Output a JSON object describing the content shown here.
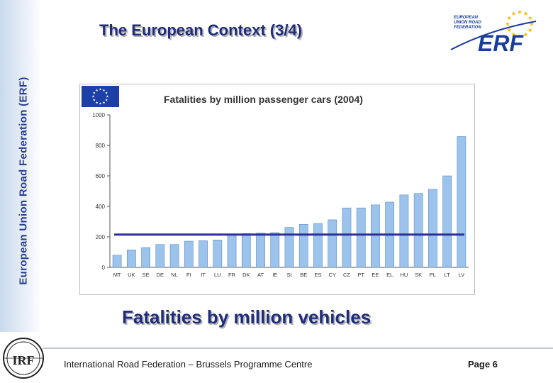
{
  "sidebar": {
    "text": "European Union Road Federation (ERF)"
  },
  "slide": {
    "title": "The European Context (3/4)"
  },
  "logo": {
    "line1": "EUROPEAN",
    "line2": "UNION ROAD",
    "line3": "FEDERATION",
    "mark": "ERF",
    "colors": {
      "brand": "#1a3d9c",
      "star": "#f2c200"
    }
  },
  "chart_data": {
    "type": "bar",
    "title": "Fatalities by million passenger cars (2004)",
    "categories": [
      "MT",
      "UK",
      "SE",
      "DE",
      "NL",
      "FI",
      "IT",
      "LU",
      "FR",
      "DK",
      "AT",
      "IE",
      "SI",
      "BE",
      "ES",
      "CY",
      "CZ",
      "PT",
      "EE",
      "EL",
      "HU",
      "SK",
      "PL",
      "LT",
      "LV"
    ],
    "values": [
      80,
      115,
      130,
      150,
      150,
      172,
      175,
      180,
      210,
      222,
      225,
      228,
      262,
      282,
      288,
      312,
      390,
      390,
      410,
      428,
      475,
      485,
      512,
      600,
      858
    ],
    "average_line": 215,
    "ylim": [
      0,
      1000
    ],
    "yticks": [
      0,
      200,
      400,
      600,
      800,
      1000
    ],
    "grid": false,
    "colors": {
      "bar": "#9cc3ec",
      "bar_edge": "#5d8cc4",
      "average": "#2e2f9a",
      "eu_flag": "#1d3fa8"
    }
  },
  "caption": "Fatalities by million vehicles",
  "footer": {
    "text": "International Road Federation – Brussels Programme Centre",
    "page": "Page 6"
  },
  "irf_logo": {
    "text": "IRF"
  }
}
